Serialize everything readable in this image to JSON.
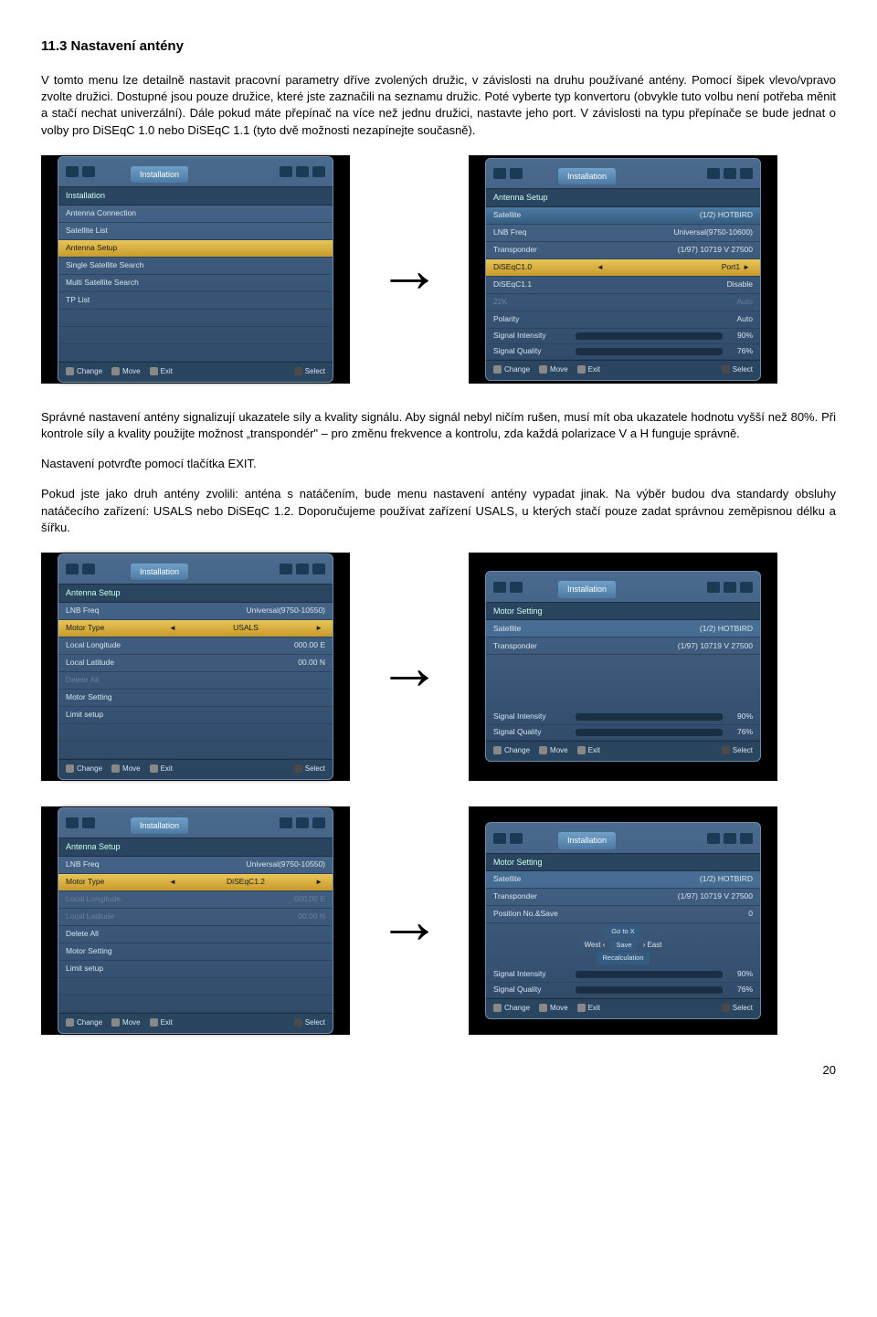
{
  "heading": "11.3 Nastavení antény",
  "para1": "V tomto menu lze detailně nastavit pracovní parametry dříve zvolených družic, v závislosti na druhu používané antény. Pomocí šipek vlevo/vpravo zvolte družici. Dostupné jsou pouze družice, které jste zaznačili na seznamu družic. Poté vyberte typ konvertoru (obvykle tuto volbu není potřeba měnit a stačí nechat univerzální). Dále pokud máte přepínač na více než jednu družici, nastavte jeho port. V závislosti na typu přepínače se bude jednat o volby pro DiSEqC 1.0 nebo DiSEqC 1.1 (tyto dvě možnosti nezapínejte současně).",
  "para2": "Správné nastavení antény signalizují ukazatele síly a kvality signálu. Aby signál nebyl ničím rušen, musí mít oba ukazatele hodnotu vyšší než 80%. Při kontrole síly a kvality použijte možnost „transpondér\" – pro změnu frekvence a kontrolu, zda každá polarizace V a H funguje správně.",
  "para3": "Nastavení potvrďte pomocí tlačítka EXIT.",
  "para4": "Pokud jste jako druh antény zvolili: anténa s natáčením, bude menu nastavení antény vypadat jinak. Na výběr budou dva standardy obsluhy natáčecího zařízení: USALS nebo DiSEqC 1.2. Doporučujeme používat zařízení USALS, u kterých stačí pouze zadat správnou zeměpisnou délku a šířku.",
  "pagenum": "20",
  "arrow_glyph": "→",
  "panel": {
    "tab": "Installation",
    "foot": {
      "change": "Change",
      "move": "Move",
      "exit": "Exit",
      "select": "Select"
    },
    "signal": {
      "intensity_label": "Signal Intensity",
      "quality_label": "Signal Quality",
      "intensity_pct": "90%",
      "quality_pct": "76%",
      "intensity_width": "90%",
      "quality_width": "76%"
    }
  },
  "fig1_left": {
    "header": "Installation",
    "rows": [
      {
        "label": "Antenna Connection"
      },
      {
        "label": "Satellite List"
      },
      {
        "label": "Antenna Setup",
        "selected": true
      },
      {
        "label": "Single Satellite Search"
      },
      {
        "label": "Multi Satellite Search"
      },
      {
        "label": "TP List"
      }
    ]
  },
  "fig1_right": {
    "header": "Antenna Setup",
    "rows": [
      {
        "label": "Satellite",
        "value": "(1/2) HOTBIRD",
        "selblue": true
      },
      {
        "label": "LNB Freq",
        "value": "Universal(9750-10600)"
      },
      {
        "label": "Transponder",
        "value": "(1/97) 10719 V 27500"
      },
      {
        "label": "DiSEqC1.0",
        "value": "Port1",
        "selected": true,
        "arrows": true
      },
      {
        "label": "DiSEqC1.1",
        "value": "Disable"
      },
      {
        "label": "22K",
        "value": "Auto",
        "dim": true
      },
      {
        "label": "Polarity",
        "value": "Auto"
      }
    ],
    "signals": true
  },
  "fig2_left": {
    "header": "Antenna Setup",
    "rows": [
      {
        "label": "LNB Freq",
        "value": "Universal(9750-10550)"
      },
      {
        "label": "Motor Type",
        "value": "USALS",
        "selected": true,
        "arrows": true,
        "center": true
      },
      {
        "label": "Local Longitude",
        "value": "000.00 E"
      },
      {
        "label": "Local Latitude",
        "value": "00.00 N"
      },
      {
        "label": "Delete All",
        "dim": true
      },
      {
        "label": "Motor Setting"
      },
      {
        "label": "Limit setup"
      }
    ]
  },
  "fig2_right": {
    "header": "Motor Setting",
    "rows": [
      {
        "label": "Satellite",
        "value": "(1/2) HOTBIRD",
        "selbluea": true
      },
      {
        "label": "Transponder",
        "value": "(1/97) 10719 V 27500"
      }
    ],
    "signals": true,
    "tall_gap": true
  },
  "fig3_left": {
    "header": "Antenna Setup",
    "rows": [
      {
        "label": "LNB Freq",
        "value": "Universal(9750-10550)"
      },
      {
        "label": "Motor Type",
        "value": "DiSEqC1.2",
        "selected": true,
        "arrows": true,
        "center": true
      },
      {
        "label": "Local Longitude",
        "value": "000.00 E",
        "dim": true
      },
      {
        "label": "Local Latitude",
        "value": "00.00 N",
        "dim": true
      },
      {
        "label": "Delete All"
      },
      {
        "label": "Motor Setting"
      },
      {
        "label": "Limit setup"
      }
    ]
  },
  "fig3_right": {
    "header": "Motor Setting",
    "rows": [
      {
        "label": "Satellite",
        "value": "(1/2) HOTBIRD",
        "selbluea": true
      },
      {
        "label": "Transponder",
        "value": "(1/97) 10719 V 27500"
      },
      {
        "label": "Position No.&Save",
        "value": "0"
      }
    ],
    "centerbox": {
      "top": "Go to X",
      "left": "West",
      "mid": "Save",
      "right": "East",
      "bottom": "Recalculation"
    },
    "signals": true
  }
}
